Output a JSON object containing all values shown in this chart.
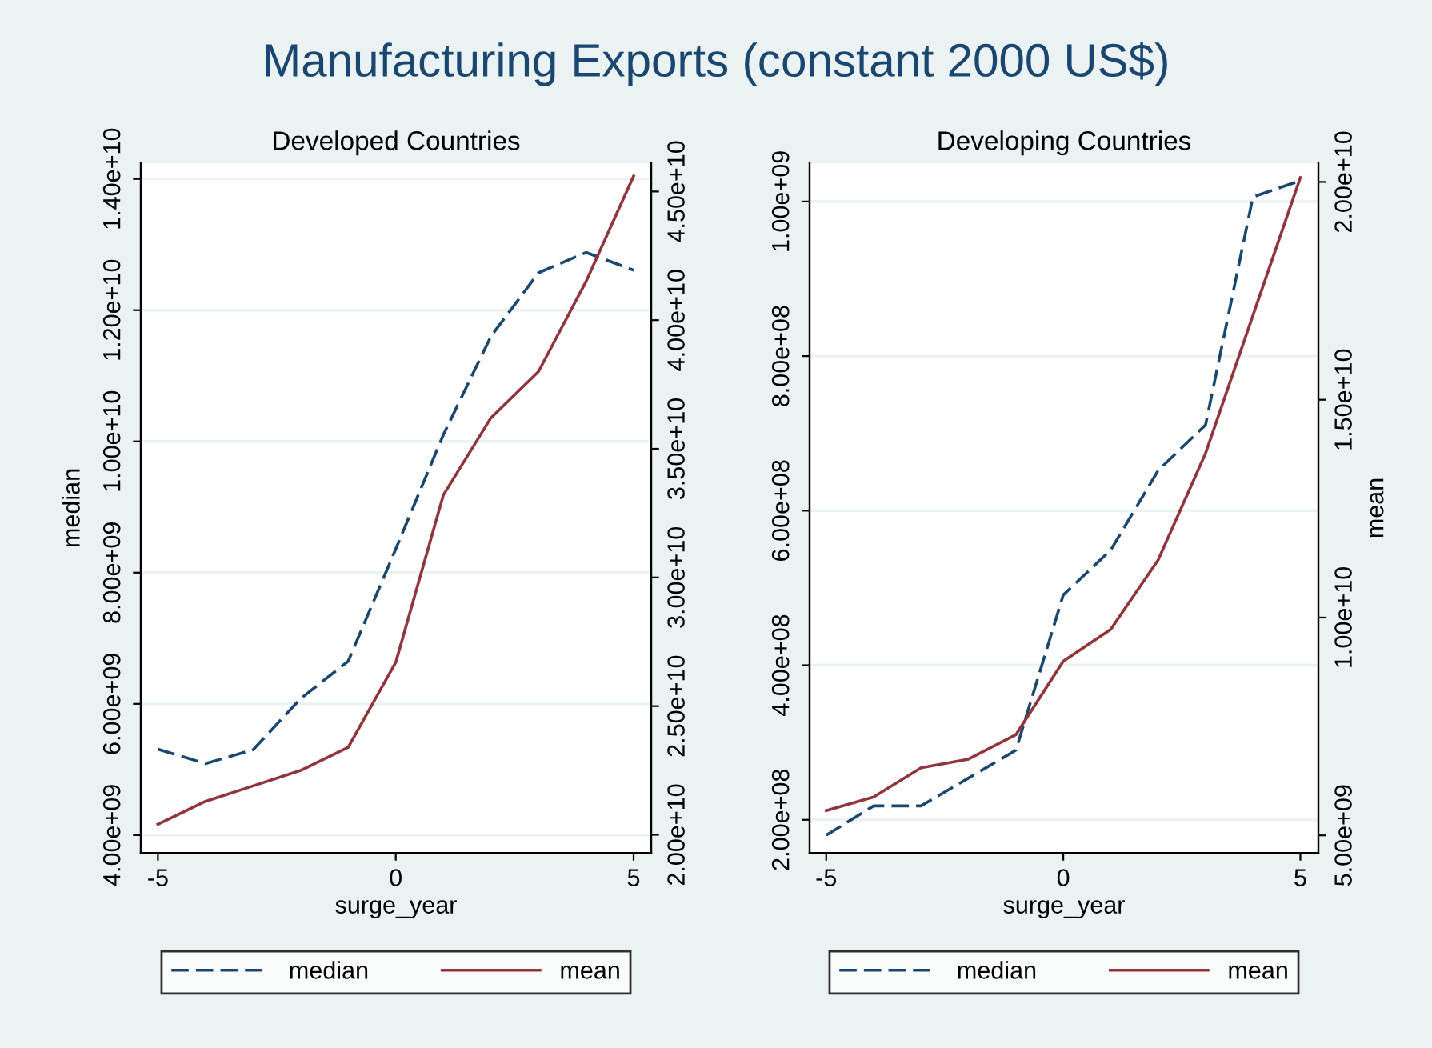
{
  "chart_data": [
    {
      "type": "line",
      "title": "Developed Countries",
      "xlabel": "surge_year",
      "ylabel": "median",
      "annotations": [
        "Manufacturing Exports (constant 2000 US$)"
      ],
      "x": [
        -5,
        -4,
        -3,
        -2,
        -1,
        0,
        1,
        2,
        3,
        4,
        5
      ],
      "series": [
        {
          "name": "median",
          "color": "#1a476f",
          "line_style": "dashed",
          "values": [
            5310000000,
            5090000000,
            5300000000,
            6080000000,
            6650000000,
            8360000000,
            10100000000,
            11600000000,
            12570000000,
            12880000000,
            12610000000
          ]
        },
        {
          "name": "mean",
          "color": "#90353b",
          "line_style": "solid",
          "axis": "y2",
          "values": [
            20410000000,
            21300000000,
            21900000000,
            22500000000,
            23400000000,
            26700000000,
            33200000000,
            36200000000,
            38000000000,
            41500000000,
            45600000000
          ]
        }
      ],
      "xlim": [
        -5.36,
        5.37
      ],
      "xticks": [
        -5,
        0,
        5
      ],
      "ylim": [
        3730000000,
        14240000000
      ],
      "yticks": [
        {
          "value": 4000000000,
          "label": "4.00e+09"
        },
        {
          "value": 6000000000,
          "label": "6.00e+09"
        },
        {
          "value": 8000000000,
          "label": "8.00e+09"
        },
        {
          "value": 10000000000,
          "label": "1.00e+10"
        },
        {
          "value": 12000000000,
          "label": "1.20e+10"
        },
        {
          "value": 14000000000,
          "label": "1.40e+10"
        }
      ],
      "y2lim": [
        19300000000,
        46100000000
      ],
      "y2ticks": [
        {
          "value": 20000000000,
          "label": "2.00e+10"
        },
        {
          "value": 25000000000,
          "label": "2.50e+10"
        },
        {
          "value": 30000000000,
          "label": "3.00e+10"
        },
        {
          "value": 35000000000,
          "label": "3.50e+10"
        },
        {
          "value": 40000000000,
          "label": "4.00e+10"
        },
        {
          "value": 45000000000,
          "label": "4.50e+10"
        }
      ],
      "grid": "y",
      "legend": "bottom",
      "marker": "none"
    },
    {
      "type": "line",
      "title": "Developing Countries",
      "xlabel": "surge_year",
      "y2label": "mean",
      "x": [
        -5,
        -4,
        -3,
        -2,
        -1,
        0,
        1,
        2,
        3,
        4,
        5
      ],
      "series": [
        {
          "name": "median",
          "color": "#1a476f",
          "line_style": "dashed",
          "values": [
            180000000,
            218000000,
            218000000,
            254000000,
            290000000,
            491000000,
            549000000,
            652000000,
            711000000,
            1006000000,
            1027000000
          ]
        },
        {
          "name": "mean",
          "color": "#90353b",
          "line_style": "solid",
          "axis": "y2",
          "values": [
            5570000000,
            5880000000,
            6550000000,
            6750000000,
            7310000000,
            9000000000,
            9730000000,
            11320000000,
            13770000000,
            16940000000,
            20100000000
          ]
        }
      ],
      "xlim": [
        -5.35,
        5.38
      ],
      "xticks": [
        -5,
        0,
        5
      ],
      "ylim": [
        157300000,
        1049600000
      ],
      "yticks": [
        {
          "value": 200000000,
          "label": "2.00e+08"
        },
        {
          "value": 400000000,
          "label": "4.00e+08"
        },
        {
          "value": 600000000,
          "label": "6.00e+08"
        },
        {
          "value": 800000000,
          "label": "8.00e+08"
        },
        {
          "value": 1000000000,
          "label": "1.00e+09"
        }
      ],
      "y2lim": [
        4600000000,
        20430000000
      ],
      "y2ticks": [
        {
          "value": 5000000000,
          "label": "5.00e+09"
        },
        {
          "value": 10000000000,
          "label": "1.00e+10"
        },
        {
          "value": 15000000000,
          "label": "1.50e+10"
        },
        {
          "value": 20000000000,
          "label": "2.00e+10"
        }
      ],
      "grid": "y",
      "legend": "bottom",
      "marker": "none"
    }
  ]
}
